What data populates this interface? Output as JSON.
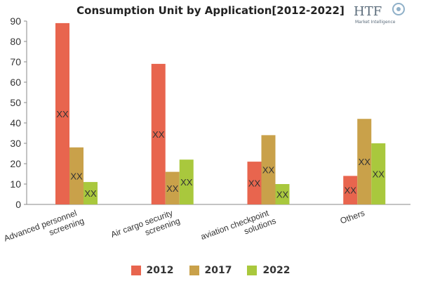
{
  "chart_data": {
    "type": "bar",
    "title": "Consumption Unit by  Application[2012-2022]",
    "categories": [
      [
        "Advanced personnel",
        "screening"
      ],
      [
        "Air cargo security",
        "screening"
      ],
      [
        "aviation checkpoint",
        "solutions"
      ],
      [
        "Others"
      ]
    ],
    "series": [
      {
        "name": "2012",
        "color": "#e8654e",
        "values": [
          89,
          69,
          21,
          14
        ]
      },
      {
        "name": "2017",
        "color": "#c9a14a",
        "values": [
          28,
          16,
          34,
          42
        ]
      },
      {
        "name": "2022",
        "color": "#a9c83d",
        "values": [
          11,
          22,
          10,
          30
        ]
      }
    ],
    "data_label": "XX",
    "ylim": [
      0,
      90
    ],
    "yticks": [
      0,
      10,
      20,
      30,
      40,
      50,
      60,
      70,
      80,
      90
    ],
    "grid": false,
    "legend_position": "bottom"
  },
  "logo": {
    "text": "HTF",
    "subtext": "Market Intelligence"
  }
}
